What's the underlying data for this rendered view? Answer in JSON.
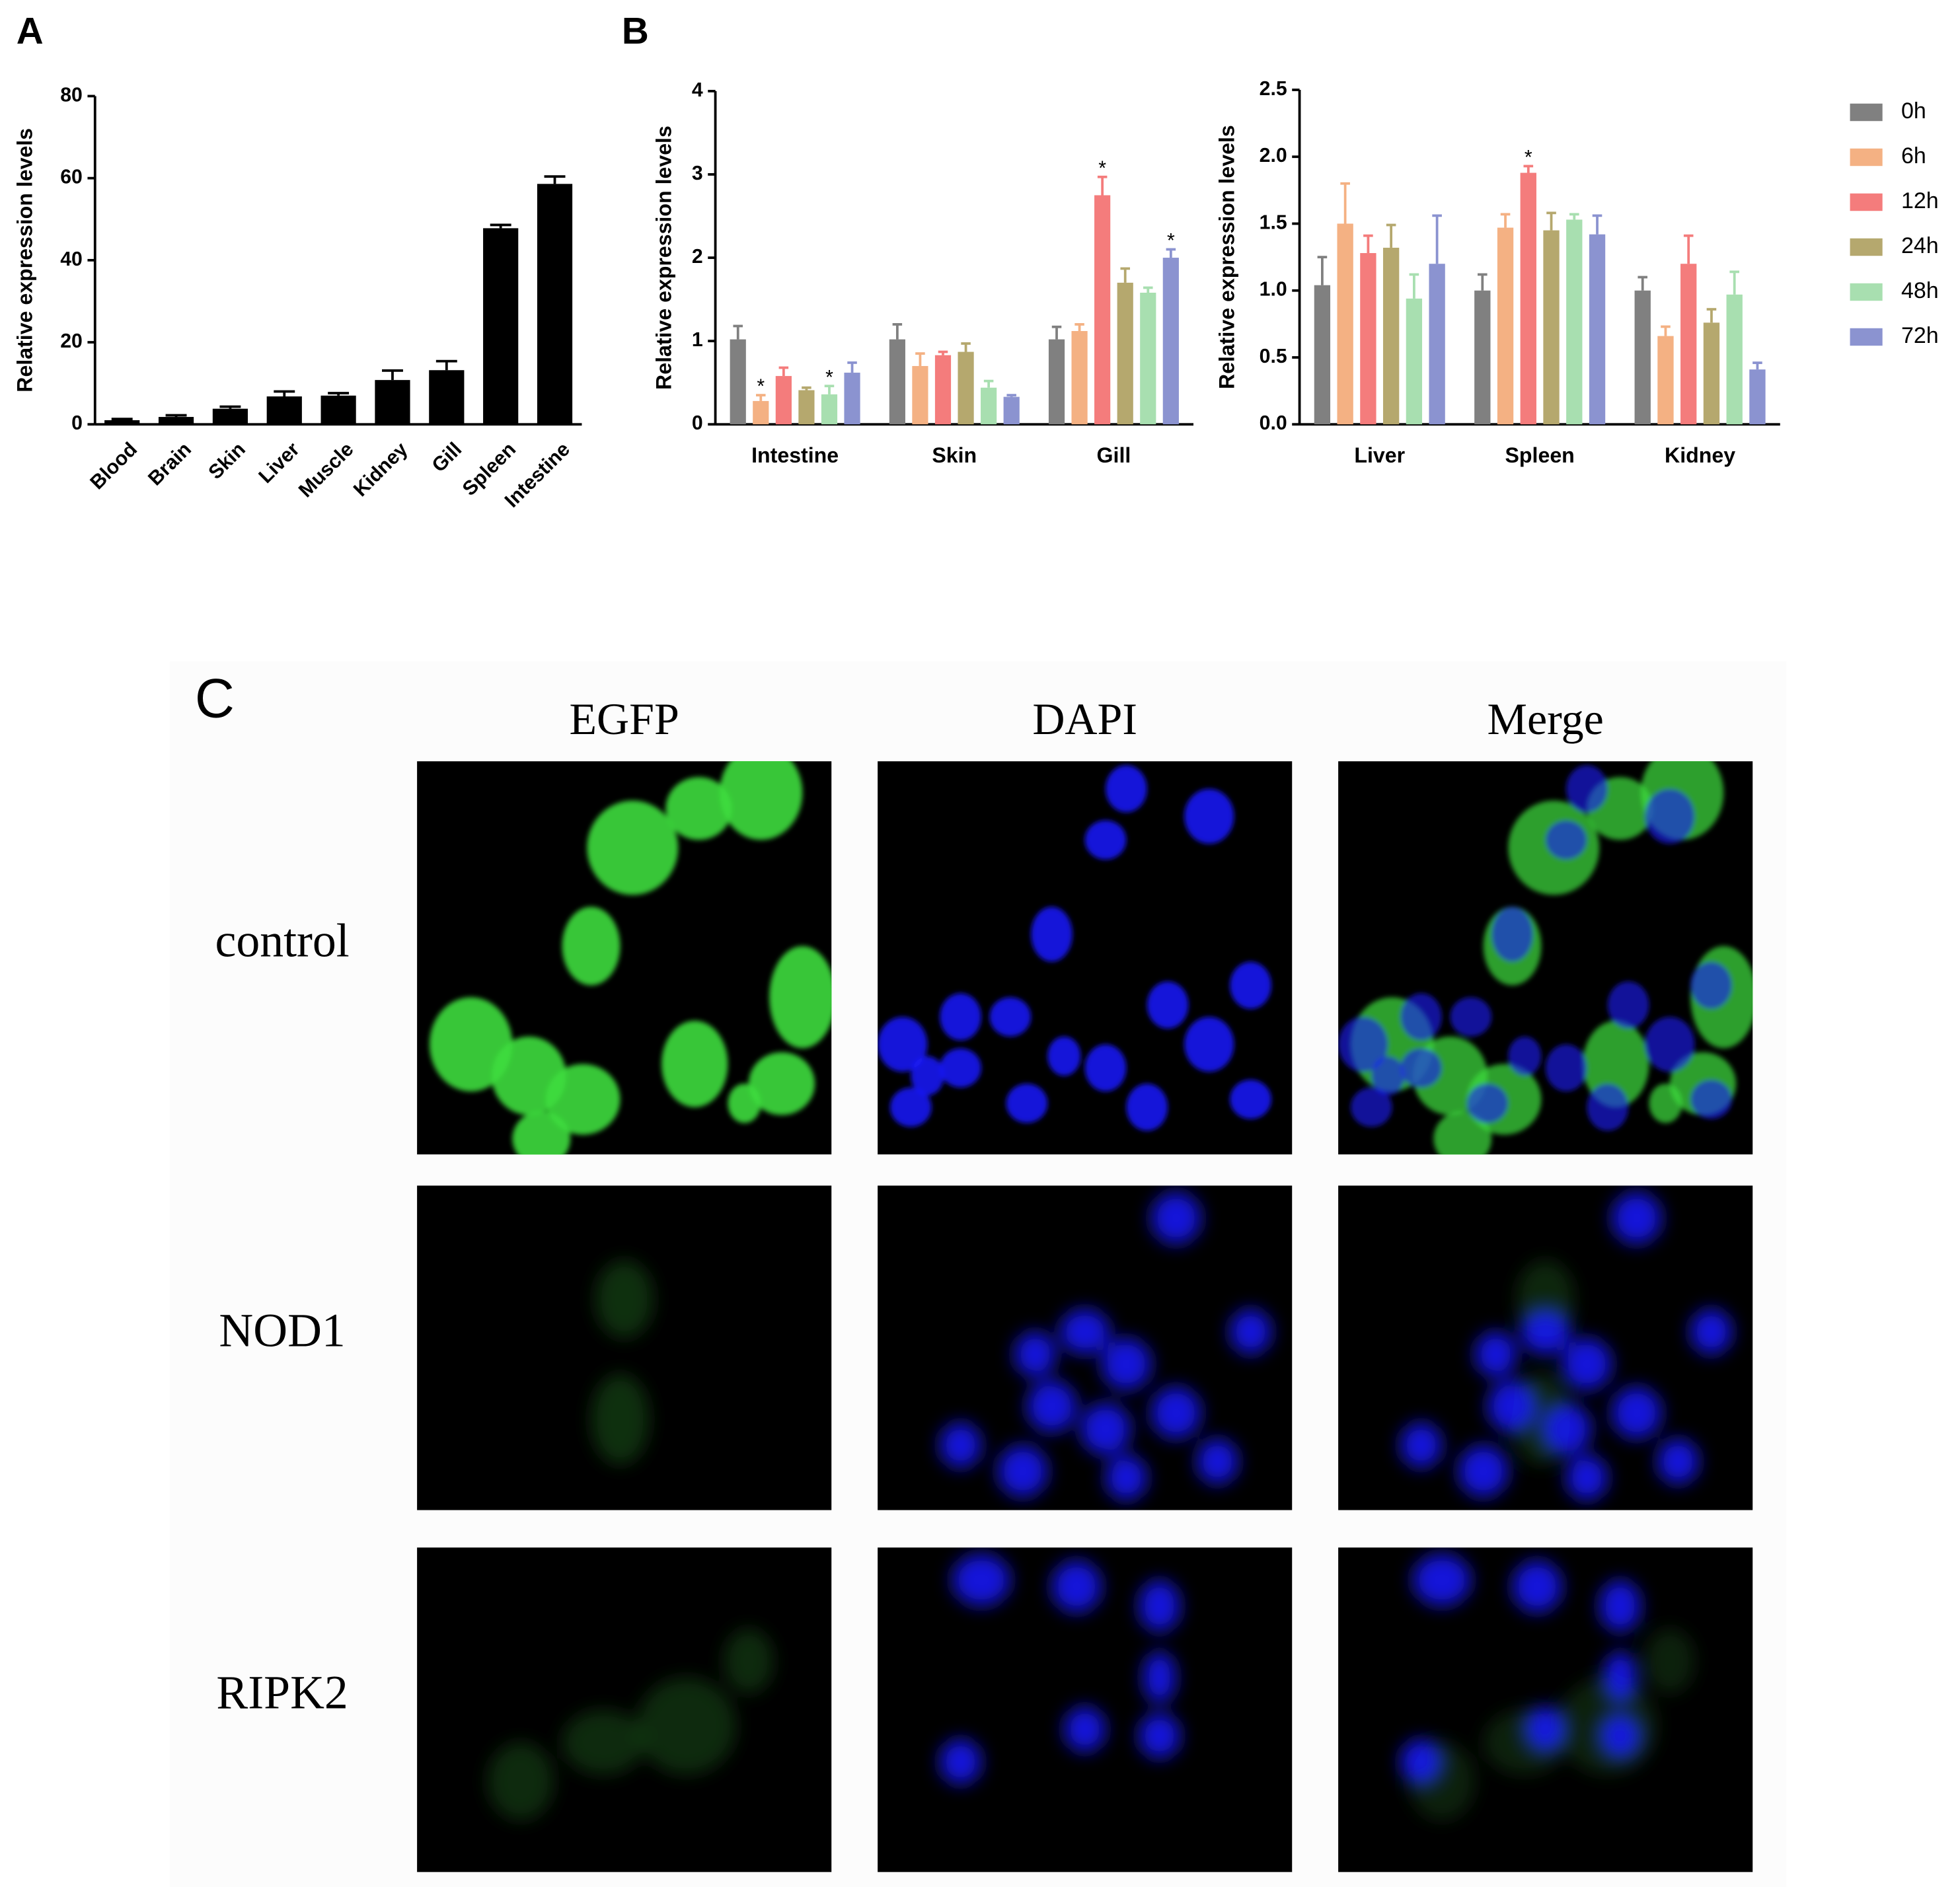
{
  "chart_data": [
    {
      "type": "bar",
      "panel_label": "A",
      "y_label": "Relative expression levels",
      "categories": [
        "Blood",
        "Brain",
        "Skin",
        "Liver",
        "Muscle",
        "Kidney",
        "Gill",
        "Spleen",
        "Intestine"
      ],
      "values": [
        1,
        1.8,
        3.8,
        6.8,
        7,
        10.8,
        13.2,
        47.8,
        58.6
      ],
      "errors": [
        0.3,
        0.4,
        0.5,
        1.2,
        0.6,
        2.3,
        2.2,
        0.8,
        1.8
      ],
      "color": "#000000",
      "ylim": [
        0,
        80
      ],
      "yticks": [
        0,
        20,
        40,
        60,
        80
      ]
    },
    {
      "type": "bar",
      "panel_label": "B",
      "y_label": "Relative expression levels",
      "categories": [
        "Intestine",
        "Skin",
        "Gill"
      ],
      "ylim": [
        0,
        4
      ],
      "yticks": [
        0,
        1,
        2,
        3,
        4
      ],
      "series": [
        {
          "name": "0h",
          "color": "#808080",
          "values": [
            1.02,
            1.02,
            1.02
          ],
          "errors": [
            0.16,
            0.18,
            0.15
          ],
          "significance": [
            null,
            null,
            null
          ]
        },
        {
          "name": "6h",
          "color": "#f4b183",
          "values": [
            0.28,
            0.7,
            1.12
          ],
          "errors": [
            0.07,
            0.15,
            0.08
          ],
          "significance": [
            "*",
            null,
            null
          ]
        },
        {
          "name": "12h",
          "color": "#f47c7c",
          "values": [
            0.58,
            0.83,
            2.75
          ],
          "errors": [
            0.1,
            0.04,
            0.22
          ],
          "significance": [
            null,
            null,
            "*"
          ]
        },
        {
          "name": "24h",
          "color": "#b5a86e",
          "values": [
            0.41,
            0.87,
            1.7
          ],
          "errors": [
            0.03,
            0.1,
            0.17
          ],
          "significance": [
            null,
            null,
            null
          ]
        },
        {
          "name": "48h",
          "color": "#a8dfb0",
          "values": [
            0.36,
            0.44,
            1.58
          ],
          "errors": [
            0.1,
            0.08,
            0.06
          ],
          "significance": [
            "*",
            null,
            null
          ]
        },
        {
          "name": "72h",
          "color": "#8b93d0",
          "values": [
            0.62,
            0.33,
            2.0
          ],
          "errors": [
            0.12,
            0.02,
            0.1
          ],
          "significance": [
            null,
            null,
            "*"
          ]
        }
      ]
    },
    {
      "type": "bar",
      "y_label": "Relative expression levels",
      "categories": [
        "Liver",
        "Spleen",
        "Kidney"
      ],
      "ylim": [
        0,
        2.5
      ],
      "yticks": [
        {
          "value": 0,
          "label": "0.0"
        },
        0.5,
        {
          "value": 1,
          "label": "1.0"
        },
        1.5,
        {
          "value": 2,
          "label": "2.0"
        },
        2.5
      ],
      "legend": "right",
      "series": [
        {
          "name": "0h",
          "color": "#808080",
          "values": [
            1.04,
            1.0,
            1.0
          ],
          "errors": [
            0.21,
            0.12,
            0.1
          ],
          "significance": [
            null,
            null,
            null
          ]
        },
        {
          "name": "6h",
          "color": "#f4b183",
          "values": [
            1.5,
            1.47,
            0.66
          ],
          "errors": [
            0.3,
            0.1,
            0.07
          ],
          "significance": [
            null,
            null,
            null
          ]
        },
        {
          "name": "12h",
          "color": "#f47c7c",
          "values": [
            1.28,
            1.88,
            1.2
          ],
          "errors": [
            0.13,
            0.05,
            0.21
          ],
          "significance": [
            null,
            "*",
            null
          ]
        },
        {
          "name": "24h",
          "color": "#b5a86e",
          "values": [
            1.32,
            1.45,
            0.76
          ],
          "errors": [
            0.17,
            0.13,
            0.1
          ],
          "significance": [
            null,
            null,
            null
          ]
        },
        {
          "name": "48h",
          "color": "#a8dfb0",
          "values": [
            0.94,
            1.53,
            0.97
          ],
          "errors": [
            0.18,
            0.04,
            0.17
          ],
          "significance": [
            null,
            null,
            null
          ]
        },
        {
          "name": "72h",
          "color": "#8b93d0",
          "values": [
            1.2,
            1.42,
            0.41
          ],
          "errors": [
            0.36,
            0.14,
            0.05
          ],
          "significance": [
            null,
            null,
            null
          ]
        }
      ]
    }
  ],
  "panel_c": {
    "label": "C",
    "columns": [
      "EGFP",
      "DAPI",
      "Merge"
    ],
    "rows": [
      "control",
      "NOD1",
      "RIPK2"
    ]
  }
}
